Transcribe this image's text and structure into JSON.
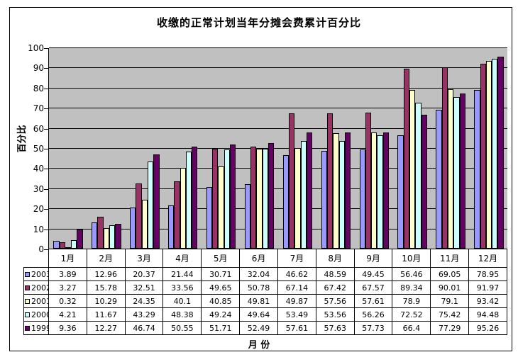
{
  "chart_data": {
    "type": "bar",
    "title": "收缴的正常计划当年分摊会费累计百分比",
    "xlabel": "月 份",
    "ylabel": "百分比",
    "ylim": [
      0,
      100
    ],
    "yticks": [
      0,
      10,
      20,
      30,
      40,
      50,
      60,
      70,
      80,
      90,
      100
    ],
    "grid": true,
    "grid_color": "#000000",
    "plot_bg": "#C0C0C0",
    "legend_position": "data-table-left",
    "categories": [
      "1月",
      "2月",
      "3月",
      "4月",
      "5月",
      "6月",
      "7月",
      "8月",
      "9月",
      "10月",
      "11月",
      "12月"
    ],
    "series": [
      {
        "name": "2003",
        "color": "#9999FF",
        "values": [
          3.89,
          12.96,
          20.37,
          21.44,
          30.71,
          32.04,
          46.62,
          48.59,
          49.45,
          56.46,
          69.05,
          78.95
        ]
      },
      {
        "name": "2002",
        "color": "#993366",
        "values": [
          3.27,
          15.78,
          32.51,
          33.56,
          49.65,
          50.78,
          67.14,
          67.42,
          67.57,
          89.34,
          90.01,
          91.97
        ]
      },
      {
        "name": "2001",
        "color": "#FFFFCC",
        "values": [
          0.32,
          10.29,
          24.35,
          40.1,
          40.85,
          49.81,
          49.87,
          57.56,
          57.61,
          78.9,
          79.1,
          93.42
        ]
      },
      {
        "name": "2000",
        "color": "#CCFFFF",
        "values": [
          4.21,
          11.67,
          43.29,
          48.38,
          49.24,
          49.64,
          53.49,
          53.56,
          56.26,
          72.52,
          75.42,
          94.48
        ]
      },
      {
        "name": "1999",
        "color": "#660066",
        "values": [
          9.36,
          12.27,
          46.74,
          50.55,
          51.71,
          52.49,
          57.61,
          57.63,
          57.73,
          66.4,
          77.29,
          95.26
        ]
      }
    ]
  }
}
